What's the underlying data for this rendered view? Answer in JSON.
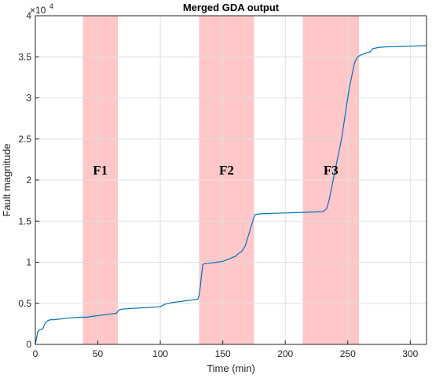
{
  "chart_data": {
    "type": "line",
    "title": "Merged GDA output",
    "xlabel": "Time (min)",
    "ylabel": "Fault magnitude",
    "xlim": [
      0,
      313
    ],
    "ylim": [
      0,
      40000
    ],
    "xticks": [
      0,
      50,
      100,
      150,
      200,
      250,
      300
    ],
    "yticks": [
      0,
      5000,
      10000,
      15000,
      20000,
      25000,
      30000,
      35000,
      40000
    ],
    "ytick_labels": [
      "0",
      "0.5",
      "1",
      "1.5",
      "2",
      "2.5",
      "3",
      "3.5",
      "4"
    ],
    "y_multiplier": {
      "base": "×10",
      "exponent": "4"
    },
    "grid": true,
    "line_color": "#0072BD",
    "band_color": "#FFC7C7",
    "fault_regions": [
      {
        "label": "F1",
        "start": 38,
        "end": 66
      },
      {
        "label": "F2",
        "start": 131,
        "end": 175
      },
      {
        "label": "F3",
        "start": 214,
        "end": 259
      }
    ],
    "series": [
      {
        "x": [
          0,
          1,
          2,
          4,
          6,
          7,
          8,
          9,
          10,
          12,
          15,
          20,
          25,
          30,
          35,
          40,
          45,
          50,
          55,
          60,
          63,
          65,
          67,
          70,
          80,
          85,
          90,
          100,
          104,
          110,
          120,
          125,
          130,
          131,
          132,
          133,
          134,
          135,
          140,
          145,
          150,
          155,
          158,
          160,
          162,
          165,
          168,
          170,
          172,
          173,
          174,
          175,
          176,
          180,
          190,
          200,
          210,
          220,
          230,
          233,
          235,
          237,
          239,
          241,
          243,
          245,
          247,
          249,
          251,
          253,
          255,
          256,
          258,
          260,
          262,
          265,
          268,
          270,
          275,
          280,
          290,
          300,
          313
        ],
        "y": [
          0,
          800,
          1600,
          1800,
          1900,
          2300,
          2600,
          2800,
          2900,
          3000,
          3000,
          3100,
          3200,
          3250,
          3300,
          3300,
          3400,
          3500,
          3600,
          3700,
          3750,
          3800,
          4200,
          4300,
          4400,
          4450,
          4500,
          4600,
          4900,
          5100,
          5300,
          5400,
          5500,
          6000,
          7000,
          8500,
          9700,
          9800,
          9900,
          10000,
          10100,
          10400,
          10600,
          10700,
          11000,
          11300,
          12000,
          13000,
          14000,
          14500,
          15000,
          15500,
          15800,
          15900,
          15950,
          16000,
          16050,
          16100,
          16150,
          16500,
          17500,
          19000,
          20500,
          22000,
          23500,
          25000,
          27000,
          29000,
          31000,
          32500,
          34000,
          34500,
          35000,
          35200,
          35300,
          35500,
          35600,
          36000,
          36150,
          36200,
          36250,
          36300,
          36350
        ]
      }
    ]
  }
}
